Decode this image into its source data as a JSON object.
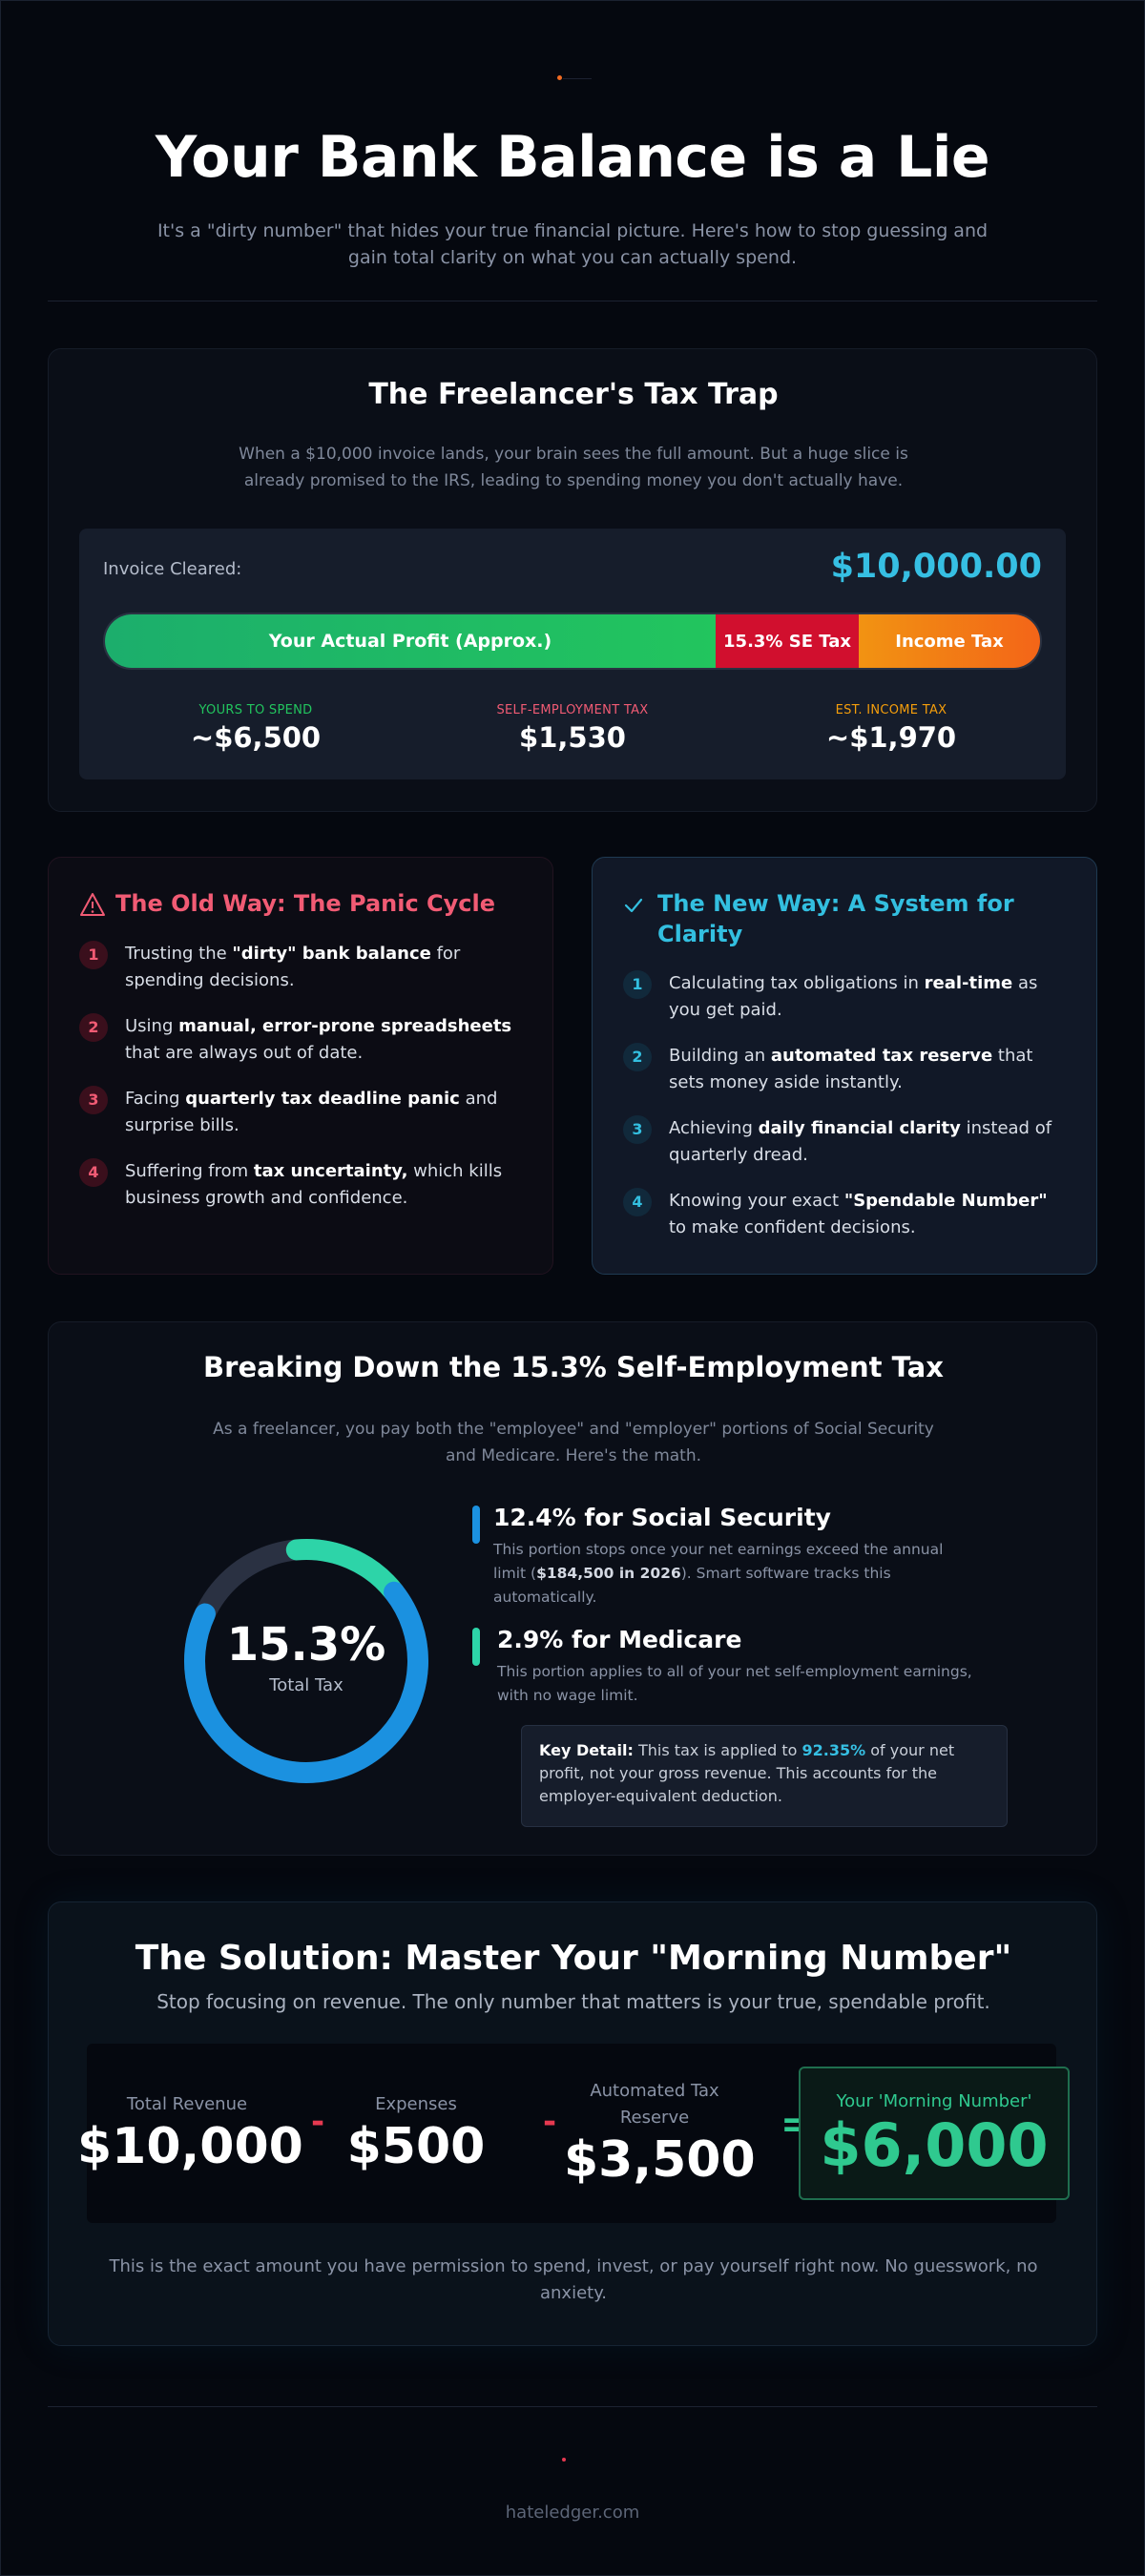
{
  "hero": {
    "title": "Your Bank Balance is a Lie",
    "subtitle": "It's a \"dirty number\" that hides your true financial picture. Here's how to stop guessing and gain total clarity on what you can actually spend."
  },
  "tax_trap": {
    "title": "The Freelancer's Tax Trap",
    "description": "When a $10,000 invoice lands, your brain sees the full amount. But a huge slice is already promised to the IRS, leading to spending money you don't actually have.",
    "invoice_label": "Invoice Cleared:",
    "invoice_amount": "$10,000.00",
    "bar": {
      "profit_label": "Your Actual Profit (Approx.)",
      "se_label": "15.3% SE Tax",
      "income_label": "Income Tax"
    },
    "stats": [
      {
        "label": "YOURS TO SPEND",
        "value": "~$6,500",
        "color": "#22c55e"
      },
      {
        "label": "SELF-EMPLOYMENT TAX",
        "value": "$1,530",
        "color": "#f15b74"
      },
      {
        "label": "EST. INCOME TAX",
        "value": "~$1,970",
        "color": "#f59e0b"
      }
    ]
  },
  "old_way": {
    "title": "The Old Way: The Panic Cycle",
    "icon": "warning-icon",
    "color": "#f15b74",
    "items": [
      {
        "number": "1",
        "before": "Trusting the ",
        "bold": "\"dirty\" bank balance",
        "after": " for spending decisions."
      },
      {
        "number": "2",
        "before": "Using ",
        "bold": "manual, error-prone spreadsheets",
        "after": " that are always out of date."
      },
      {
        "number": "3",
        "before": "Facing ",
        "bold": "quarterly tax deadline panic",
        "after": " and surprise bills."
      },
      {
        "number": "4",
        "before": "Suffering from ",
        "bold": "tax uncertainty,",
        "after": " which kills business growth and confidence."
      }
    ]
  },
  "new_way": {
    "title": "The New Way: A System for Clarity",
    "icon": "check-icon",
    "color": "#33bfe0",
    "items": [
      {
        "number": "1",
        "before": "Calculating tax obligations in ",
        "bold": "real-time",
        "after": " as you get paid."
      },
      {
        "number": "2",
        "before": "Building an ",
        "bold": "automated tax reserve",
        "after": " that sets money aside instantly."
      },
      {
        "number": "3",
        "before": "Achieving ",
        "bold": "daily financial clarity",
        "after": " instead of quarterly dread."
      },
      {
        "number": "4",
        "before": "Knowing your exact ",
        "bold": "\"Spendable Number\"",
        "after": " to make confident decisions."
      }
    ]
  },
  "se_tax": {
    "title": "Breaking Down the 15.3% Self-Employment Tax",
    "description": "As a freelancer, you pay both the \"employee\" and \"employer\" portions of Social Security and Medicare. Here's the math.",
    "donut_value": "15.3%",
    "donut_label": "Total Tax",
    "donut_segments": [
      {
        "name": "Social Security",
        "percent": 12.4,
        "color": "#1b91e0"
      },
      {
        "name": "Medicare",
        "percent": 2.9,
        "color": "#2dd4a8"
      }
    ],
    "social_security": {
      "title": "12.4% for Social Security",
      "desc_before": "This portion stops once your net earnings exceed the annual limit (",
      "desc_bold": "$184,500 in 2026",
      "desc_after": "). Smart software tracks this automatically."
    },
    "medicare": {
      "title": "2.9% for Medicare",
      "desc": "This portion applies to all of your net self-employment earnings, with no wage limit."
    },
    "key_detail": {
      "label": "Key Detail:",
      "before": " This tax is applied to ",
      "highlight": "92.35%",
      "after": " of your net profit, not your gross revenue. This accounts for the employer-equivalent deduction."
    }
  },
  "solution": {
    "title": "The Solution: Master Your \"Morning Number\"",
    "subtitle": "Stop focusing on revenue. The only number that matters is your true, spendable profit.",
    "revenue_label": "Total Revenue",
    "revenue_value": "$10,000",
    "minus": "-",
    "expenses_label": "Expenses",
    "expenses_value": "$500",
    "reserve_label": "Automated Tax Reserve",
    "reserve_value": "$3,500",
    "equals": "=",
    "result_label": "Your 'Morning Number'",
    "result_value": "$6,000",
    "footnote": "This is the exact amount you have permission to spend, invest, or pay yourself right now. No guesswork, no anxiety."
  },
  "footer": {
    "link": "hateledger.com"
  }
}
